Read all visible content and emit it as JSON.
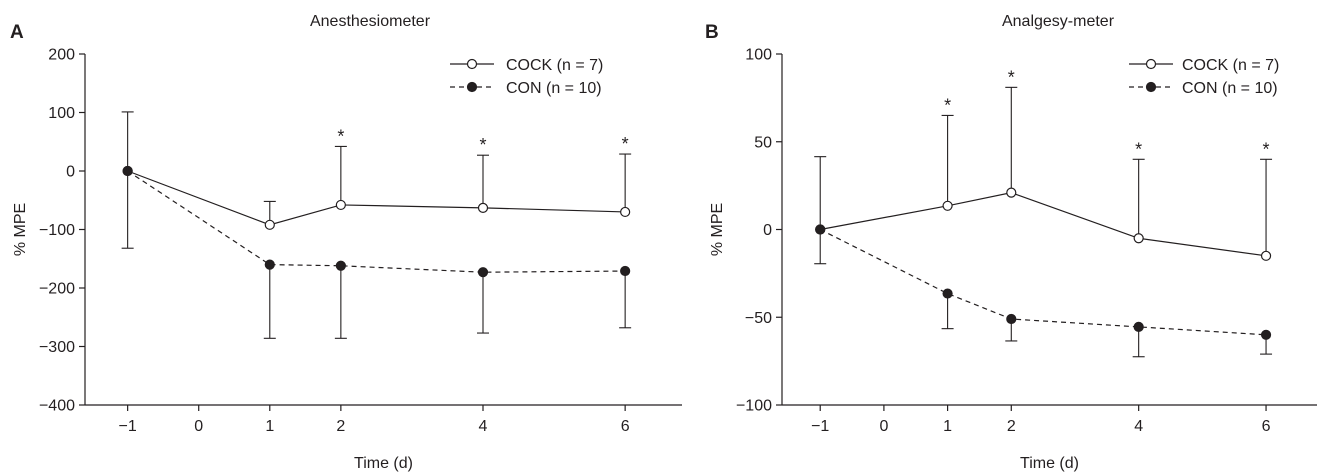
{
  "chart_data": [
    {
      "type": "line",
      "panel": "A",
      "title": "Anesthesiometer",
      "xlabel": "Time (d)",
      "ylabel": "% MPE",
      "x_ticks": [
        -1,
        0,
        1,
        2,
        4,
        6
      ],
      "y_ticks": [
        -400,
        -300,
        -200,
        -100,
        0,
        100,
        200
      ],
      "xlim": [
        -1.6,
        6.8
      ],
      "ylim": [
        -400,
        200
      ],
      "legend_position": "top-right",
      "series": [
        {
          "name": "COCK (n = 7)",
          "marker": "open-circle",
          "style": "solid",
          "x": [
            -1,
            1,
            2,
            4,
            6
          ],
          "y": [
            0,
            -92,
            -58,
            -63,
            -70
          ],
          "error_dir": [
            1,
            1,
            1,
            1,
            1
          ],
          "error_end": [
            101,
            -52,
            42,
            27,
            29
          ]
        },
        {
          "name": "CON (n = 10)",
          "marker": "filled-circle",
          "style": "dashed",
          "x": [
            -1,
            1,
            2,
            4,
            6
          ],
          "y": [
            0,
            -160,
            -162,
            -173,
            -171
          ],
          "error_dir": [
            -1,
            -1,
            -1,
            -1,
            -1
          ],
          "error_end": [
            -132,
            -286,
            -286,
            -277,
            -268
          ]
        }
      ],
      "annotations": [
        {
          "x": 2,
          "y": 42,
          "text": "*"
        },
        {
          "x": 4,
          "y": 27,
          "text": "*"
        },
        {
          "x": 6,
          "y": 29,
          "text": "*"
        }
      ]
    },
    {
      "type": "line",
      "panel": "B",
      "title": "Analgesy-meter",
      "xlabel": "Time (d)",
      "ylabel": "% MPE",
      "x_ticks": [
        -1,
        0,
        1,
        2,
        4,
        6
      ],
      "y_ticks": [
        -100,
        -50,
        0,
        50,
        100
      ],
      "xlim": [
        -1.6,
        6.8
      ],
      "ylim": [
        -100,
        100
      ],
      "legend_position": "top-right",
      "series": [
        {
          "name": "COCK (n = 7)",
          "marker": "open-circle",
          "style": "solid",
          "x": [
            -1,
            1,
            2,
            4,
            6
          ],
          "y": [
            0,
            13.5,
            21,
            -5,
            -15
          ],
          "error_dir": [
            1,
            1,
            1,
            1,
            1
          ],
          "error_end": [
            41.5,
            65,
            81,
            40,
            40
          ]
        },
        {
          "name": "CON (n = 10)",
          "marker": "filled-circle",
          "style": "dashed",
          "x": [
            -1,
            1,
            2,
            4,
            6
          ],
          "y": [
            0,
            -36.5,
            -51,
            -55.5,
            -60
          ],
          "error_dir": [
            -1,
            -1,
            -1,
            -1,
            -1
          ],
          "error_end": [
            -19.5,
            -56.5,
            -63.5,
            -72.5,
            -71
          ]
        }
      ],
      "annotations": [
        {
          "x": 1,
          "y": 65,
          "text": "*"
        },
        {
          "x": 2,
          "y": 81,
          "text": "*"
        },
        {
          "x": 4,
          "y": 40,
          "text": "*"
        },
        {
          "x": 6,
          "y": 40,
          "text": "*"
        }
      ]
    }
  ]
}
